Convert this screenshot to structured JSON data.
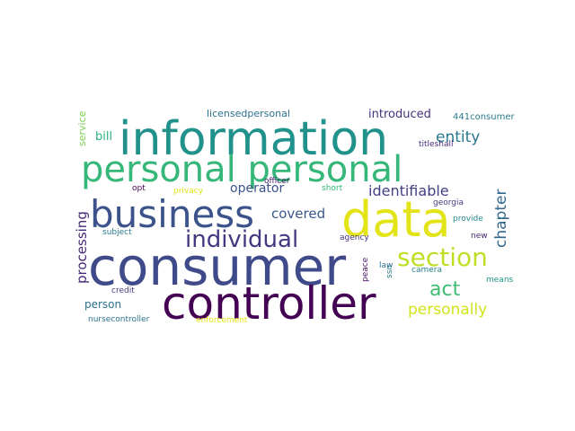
{
  "words": [
    {
      "id": "w0",
      "text": "information",
      "color": "#21918c"
    },
    {
      "id": "w1",
      "text": "personal personal",
      "color": "#35b779"
    },
    {
      "id": "w2",
      "text": "business",
      "color": "#3b528b"
    },
    {
      "id": "w3",
      "text": "data",
      "color": "#e3e418"
    },
    {
      "id": "w4",
      "text": "consumer",
      "color": "#3e4a89"
    },
    {
      "id": "w5",
      "text": "controller",
      "color": "#440154"
    },
    {
      "id": "w6",
      "text": "individual",
      "color": "#453781"
    },
    {
      "id": "w7",
      "text": "section",
      "color": "#bddf26"
    },
    {
      "id": "w8",
      "text": "act",
      "color": "#3fbc73"
    },
    {
      "id": "w9",
      "text": "personally",
      "color": "#d2e21b"
    },
    {
      "id": "w10",
      "text": "identifiable",
      "color": "#433e85"
    },
    {
      "id": "w11",
      "text": "entity",
      "color": "#2a788e"
    },
    {
      "id": "w12",
      "text": "introduced",
      "color": "#46327e"
    },
    {
      "id": "w13",
      "text": "covered",
      "color": "#39568c"
    },
    {
      "id": "w14",
      "text": "operator",
      "color": "#3b528b"
    },
    {
      "id": "w15",
      "text": "person",
      "color": "#2c728e"
    },
    {
      "id": "w16",
      "text": "bill",
      "color": "#2db27d"
    },
    {
      "id": "w17",
      "text": "chapter",
      "color": "#31688e"
    },
    {
      "id": "w18",
      "text": "processing",
      "color": "#482878"
    },
    {
      "id": "w19",
      "text": "service",
      "color": "#7ad151"
    },
    {
      "id": "w20",
      "text": "licensedpersonal",
      "color": "#2c728e"
    },
    {
      "id": "w21",
      "text": "441consumer",
      "color": "#287c8e"
    },
    {
      "id": "w22",
      "text": "titleshall",
      "color": "#472d7b"
    },
    {
      "id": "w23",
      "text": "opt",
      "color": "#440154"
    },
    {
      "id": "w24",
      "text": "privacy",
      "color": "#dde318"
    },
    {
      "id": "w25",
      "text": "officer",
      "color": "#481a6c"
    },
    {
      "id": "w26",
      "text": "short",
      "color": "#34b679"
    },
    {
      "id": "w27",
      "text": "georgia",
      "color": "#453882"
    },
    {
      "id": "w28",
      "text": "provide",
      "color": "#23898e"
    },
    {
      "id": "w29",
      "text": "new",
      "color": "#482475"
    },
    {
      "id": "w30",
      "text": "agency",
      "color": "#46307e"
    },
    {
      "id": "w31",
      "text": "subject",
      "color": "#2a788e"
    },
    {
      "id": "w32",
      "text": "law",
      "color": "#2f6c8e"
    },
    {
      "id": "w33",
      "text": "camera",
      "color": "#25838e"
    },
    {
      "id": "w34",
      "text": "peace",
      "color": "#481467"
    },
    {
      "id": "w35",
      "text": "ssn",
      "color": "#27808e"
    },
    {
      "id": "w36",
      "text": "means",
      "color": "#1f968b"
    },
    {
      "id": "w37",
      "text": "credit",
      "color": "#433e85"
    },
    {
      "id": "w38",
      "text": "nursecontroller",
      "color": "#2c728e"
    },
    {
      "id": "w39",
      "text": "enforcement",
      "color": "#e7e419"
    }
  ]
}
